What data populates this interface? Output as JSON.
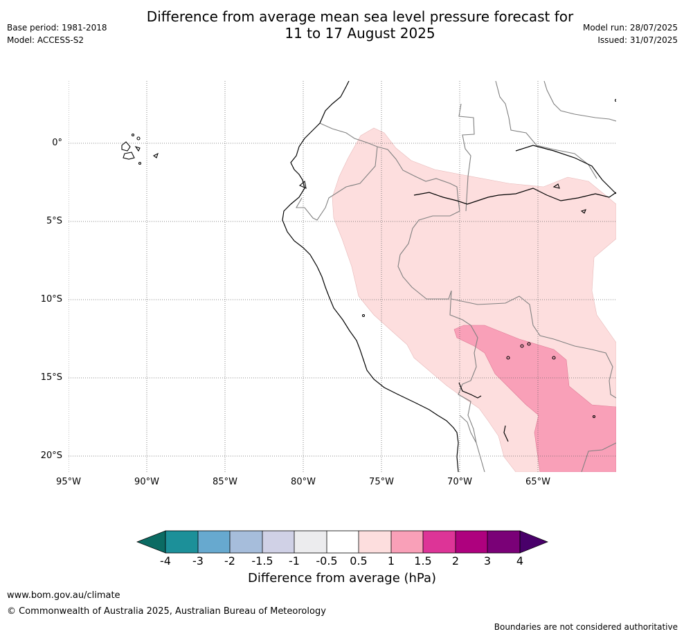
{
  "header": {
    "title_line1": "Difference from average mean sea level pressure forecast for",
    "title_line2": "11 to 17 August 2025",
    "base_period": "Base period: 1981-2018",
    "model": "Model: ACCESS-S2",
    "model_run": "Model run: 28/07/2025",
    "issued": "Issued: 31/07/2025"
  },
  "map": {
    "lat_labels": [
      "0°",
      "5°S",
      "10°S",
      "15°S",
      "20°S"
    ],
    "lon_labels": [
      "95°W",
      "90°W",
      "85°W",
      "80°W",
      "75°W",
      "70°W",
      "65°W"
    ],
    "gridlines": "dotted",
    "region": "Western South America (Ecuador, Peru, Bolivia)"
  },
  "colorbar": {
    "title": "Difference from average (hPa)",
    "ticks": [
      "-4",
      "-3",
      "-2",
      "-1.5",
      "-1",
      "-0.5",
      "0.5",
      "1",
      "1.5",
      "2",
      "3",
      "4"
    ],
    "colors": [
      "#1c9099",
      "#67a9cf",
      "#a6bddb",
      "#d0d1e6",
      "#ececee",
      "#ffffff",
      "#fddede",
      "#f9a0b8",
      "#dd3497",
      "#ae017e",
      "#7a0177"
    ],
    "under_color": "#0b6b63",
    "over_color": "#49006a"
  },
  "footer": {
    "website": "www.bom.gov.au/climate",
    "copyright": "© Commonwealth of Australia 2025, Australian Bureau of Meteorology",
    "disclaimer": "Boundaries are not considered authoritative"
  }
}
